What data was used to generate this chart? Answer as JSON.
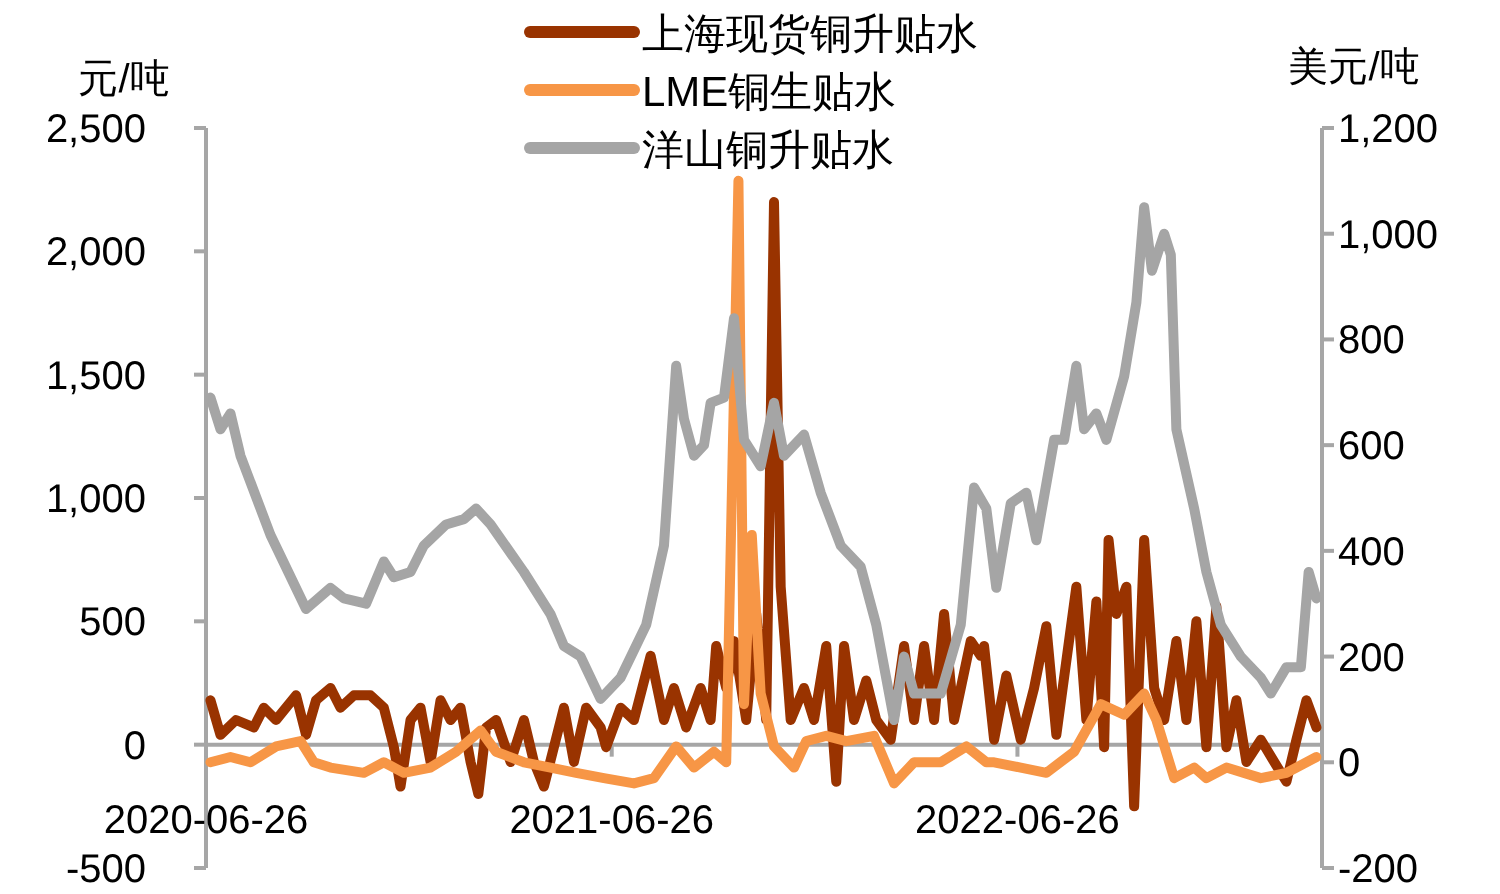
{
  "chart_data": {
    "type": "line",
    "ylabel": "元/吨",
    "y2label": "美元/吨",
    "legend": "top",
    "xlim": [
      "2020-06-26",
      "2023-03-27"
    ],
    "xticks": [
      "2020-06-26",
      "2021-06-26",
      "2022-06-26"
    ],
    "ylim": [
      -500,
      2500
    ],
    "yticks": [
      -500,
      0,
      500,
      {
        "value": 1000,
        "label": "1,000"
      },
      {
        "value": 1500,
        "label": "1,500"
      },
      {
        "value": 2000,
        "label": "2,000"
      },
      {
        "value": 2500,
        "label": "2,500"
      }
    ],
    "y2lim": [
      -200,
      1200
    ],
    "y2ticks": [
      -200,
      0,
      200,
      400,
      600,
      800,
      {
        "value": 1000,
        "label": "1,000"
      },
      {
        "value": 1200,
        "label": "1,200"
      }
    ],
    "series": [
      {
        "name": "上海现货铜升贴水",
        "color": "#993300",
        "axis": "y",
        "x": [
          "2020-06-30",
          "2020-07-09",
          "2020-07-23",
          "2020-08-08",
          "2020-08-17",
          "2020-08-28",
          "2020-09-15",
          "2020-09-24",
          "2020-10-03",
          "2020-10-16",
          "2020-10-25",
          "2020-11-06",
          "2020-11-21",
          "2020-12-03",
          "2020-12-12",
          "2020-12-18",
          "2020-12-27",
          "2021-01-05",
          "2021-01-14",
          "2021-01-23",
          "2021-02-01",
          "2021-02-10",
          "2021-02-19",
          "2021-02-26",
          "2021-03-05",
          "2021-03-14",
          "2021-03-27",
          "2021-04-08",
          "2021-04-17",
          "2021-04-26",
          "2021-05-05",
          "2021-05-14",
          "2021-05-23",
          "2021-06-03",
          "2021-06-16",
          "2021-06-21",
          "2021-07-04",
          "2021-07-16",
          "2021-07-31",
          "2021-08-12",
          "2021-08-21",
          "2021-09-01",
          "2021-09-14",
          "2021-09-23",
          "2021-09-28",
          "2021-10-07",
          "2021-10-14",
          "2021-10-25",
          "2021-11-03",
          "2021-11-12",
          "2021-11-19",
          "2021-11-25",
          "2021-12-04",
          "2021-12-16",
          "2021-12-25",
          "2022-01-05",
          "2022-01-14",
          "2022-01-21",
          "2022-01-30",
          "2022-02-10",
          "2022-02-19",
          "2022-03-04",
          "2022-03-16",
          "2022-03-25",
          "2022-04-03",
          "2022-04-12",
          "2022-04-21",
          "2022-04-30",
          "2022-05-15",
          "2022-05-24",
          "2022-05-27",
          "2022-06-05",
          "2022-06-16",
          "2022-06-29",
          "2022-07-11",
          "2022-07-22",
          "2022-07-31",
          "2022-08-18",
          "2022-08-27",
          "2022-09-05",
          "2022-09-12",
          "2022-09-16",
          "2022-09-23",
          "2022-10-02",
          "2022-10-09",
          "2022-10-18",
          "2022-10-27",
          "2022-11-05",
          "2022-11-16",
          "2022-11-25",
          "2022-12-04",
          "2022-12-13",
          "2022-12-22",
          "2022-12-31",
          "2023-01-09",
          "2023-01-18",
          "2023-01-31",
          "2023-02-12",
          "2023-02-23",
          "2023-03-04",
          "2023-03-13",
          "2023-03-22"
        ],
        "values": [
          180,
          40,
          100,
          70,
          150,
          100,
          200,
          40,
          180,
          230,
          150,
          200,
          200,
          150,
          -10,
          -170,
          100,
          150,
          -70,
          180,
          100,
          150,
          -70,
          -200,
          70,
          100,
          -70,
          100,
          -70,
          -170,
          -10,
          150,
          -70,
          150,
          70,
          -10,
          150,
          100,
          360,
          100,
          230,
          70,
          230,
          100,
          400,
          230,
          420,
          100,
          530,
          100,
          2200,
          640,
          100,
          230,
          100,
          400,
          -150,
          400,
          100,
          260,
          100,
          20,
          400,
          100,
          400,
          100,
          530,
          100,
          420,
          360,
          400,
          20,
          280,
          20,
          230,
          480,
          40,
          640,
          100,
          580,
          -10,
          830,
          530,
          640,
          -250,
          830,
          230,
          100,
          420,
          100,
          500,
          -10,
          560,
          -10,
          180,
          -70,
          20,
          -70,
          -150,
          20,
          180,
          70
        ]
      },
      {
        "name": "LME铜生贴水",
        "color": "#f79646",
        "axis": "y2",
        "x": [
          "2020-06-30",
          "2020-07-18",
          "2020-08-05",
          "2020-08-28",
          "2020-09-19",
          "2020-10-01",
          "2020-10-16",
          "2020-11-15",
          "2020-12-03",
          "2020-12-21",
          "2021-01-14",
          "2021-02-06",
          "2021-02-28",
          "2021-03-14",
          "2021-04-08",
          "2021-05-02",
          "2021-05-25",
          "2021-06-19",
          "2021-07-16",
          "2021-08-03",
          "2021-08-23",
          "2021-09-08",
          "2021-09-26",
          "2021-10-07",
          "2021-10-18",
          "2021-10-23",
          "2021-10-30",
          "2021-11-07",
          "2021-11-19",
          "2021-12-07",
          "2021-12-18",
          "2022-01-05",
          "2022-01-23",
          "2022-02-17",
          "2022-03-07",
          "2022-03-25",
          "2022-04-18",
          "2022-05-11",
          "2022-05-29",
          "2022-06-05",
          "2022-06-29",
          "2022-07-22",
          "2022-08-16",
          "2022-09-09",
          "2022-09-30",
          "2022-10-18",
          "2022-10-29",
          "2022-11-14",
          "2022-12-02",
          "2022-12-13",
          "2022-12-31",
          "2023-01-31",
          "2023-02-23",
          "2023-03-22"
        ],
        "values": [
          0,
          10,
          0,
          30,
          40,
          0,
          -10,
          -20,
          0,
          -20,
          -10,
          20,
          60,
          20,
          0,
          -10,
          -20,
          -30,
          -40,
          -30,
          30,
          -10,
          20,
          0,
          1100,
          110,
          430,
          130,
          30,
          -10,
          40,
          50,
          40,
          50,
          -40,
          0,
          0,
          30,
          0,
          0,
          -10,
          -20,
          20,
          110,
          90,
          130,
          80,
          -30,
          -10,
          -30,
          -10,
          -30,
          -20,
          10
        ]
      },
      {
        "name": "洋山铜升贴水",
        "color": "#a5a5a5",
        "axis": "y2",
        "x": [
          "2020-06-30",
          "2020-07-09",
          "2020-07-18",
          "2020-07-27",
          "2020-08-23",
          "2020-09-24",
          "2020-10-16",
          "2020-10-28",
          "2020-11-17",
          "2020-12-03",
          "2020-12-12",
          "2020-12-27",
          "2021-01-08",
          "2021-01-28",
          "2021-02-13",
          "2021-02-24",
          "2021-03-09",
          "2021-04-08",
          "2021-05-02",
          "2021-05-14",
          "2021-05-29",
          "2021-06-16",
          "2021-07-04",
          "2021-07-27",
          "2021-08-12",
          "2021-08-23",
          "2021-08-30",
          "2021-09-08",
          "2021-09-17",
          "2021-09-23",
          "2021-10-05",
          "2021-10-14",
          "2021-10-23",
          "2021-11-07",
          "2021-11-19",
          "2021-11-28",
          "2021-12-16",
          "2021-12-31",
          "2022-01-18",
          "2022-02-05",
          "2022-02-19",
          "2022-03-07",
          "2022-03-16",
          "2022-03-25",
          "2022-04-18",
          "2022-05-06",
          "2022-05-18",
          "2022-05-29",
          "2022-06-07",
          "2022-06-20",
          "2022-07-04",
          "2022-07-13",
          "2022-07-29",
          "2022-08-07",
          "2022-08-18",
          "2022-08-25",
          "2022-09-05",
          "2022-09-14",
          "2022-09-30",
          "2022-10-11",
          "2022-10-18",
          "2022-10-25",
          "2022-11-05",
          "2022-11-11",
          "2022-11-16",
          "2022-12-02",
          "2022-12-13",
          "2022-12-26",
          "2023-01-13",
          "2023-01-31",
          "2023-02-09",
          "2023-02-23",
          "2023-03-08",
          "2023-03-15",
          "2023-03-22"
        ],
        "values": [
          690,
          630,
          660,
          580,
          430,
          290,
          330,
          310,
          300,
          380,
          350,
          360,
          410,
          450,
          460,
          480,
          450,
          360,
          280,
          220,
          200,
          120,
          160,
          260,
          410,
          750,
          650,
          580,
          600,
          680,
          690,
          840,
          610,
          560,
          680,
          580,
          620,
          510,
          410,
          370,
          260,
          80,
          200,
          130,
          130,
          260,
          520,
          480,
          330,
          490,
          510,
          420,
          610,
          610,
          750,
          630,
          660,
          610,
          730,
          870,
          1050,
          930,
          1000,
          960,
          630,
          480,
          360,
          260,
          200,
          160,
          130,
          180,
          180,
          360,
          310
        ]
      }
    ]
  }
}
